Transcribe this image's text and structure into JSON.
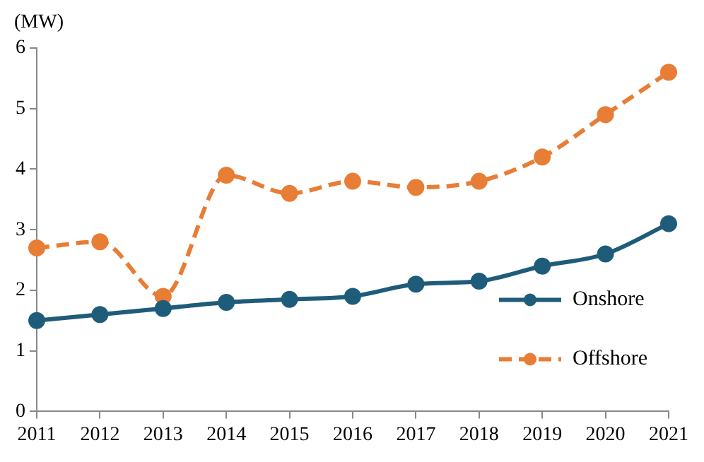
{
  "chart_data": {
    "type": "line",
    "ylabel": "(MW)",
    "x": [
      2011,
      2012,
      2013,
      2014,
      2015,
      2016,
      2017,
      2018,
      2019,
      2020,
      2021
    ],
    "series": [
      {
        "name": "Onshore",
        "color": "#1f5c7a",
        "line_style": "solid",
        "values": [
          1.5,
          1.6,
          1.7,
          1.8,
          1.85,
          1.9,
          2.1,
          2.15,
          2.4,
          2.6,
          3.1
        ]
      },
      {
        "name": "Offshore",
        "color": "#e87d35",
        "line_style": "dashed",
        "values": [
          2.7,
          2.8,
          1.9,
          3.9,
          3.6,
          3.8,
          3.7,
          3.8,
          4.2,
          4.9,
          5.6
        ]
      }
    ],
    "xlim": [
      2011,
      2021
    ],
    "xticks": [
      2011,
      2012,
      2013,
      2014,
      2015,
      2016,
      2017,
      2018,
      2019,
      2020,
      2021
    ],
    "ylim": [
      0,
      6
    ],
    "yticks": [
      0,
      1,
      2,
      3,
      4,
      5,
      6
    ],
    "grid": false,
    "legend": "bottom right",
    "marker": "circle"
  }
}
